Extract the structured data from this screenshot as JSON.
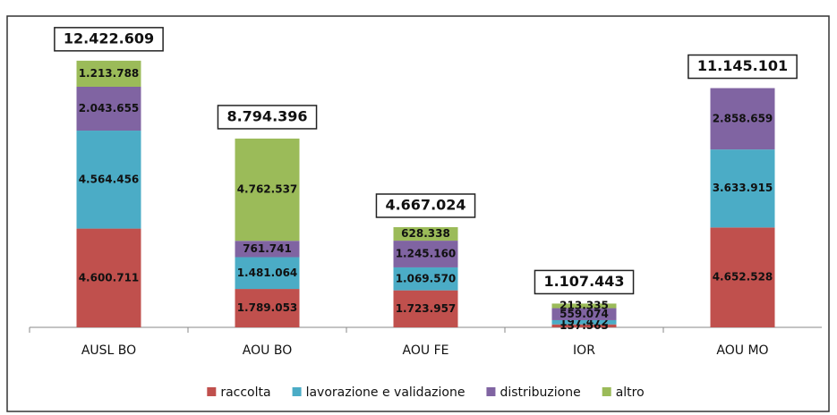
{
  "chart_data": {
    "type": "stacked-bar",
    "categories": [
      "AUSL BO",
      "AOU BO",
      "AOU FE",
      "IOR",
      "AOU MO"
    ],
    "series": [
      {
        "name": "raccolta",
        "color": "#c0504d",
        "values": [
          4600711,
          1789053,
          1723957,
          137563,
          4652528
        ],
        "value_labels": [
          "4.600.711",
          "1.789.053",
          "1.723.957",
          "137.563",
          "4.652.528"
        ]
      },
      {
        "name": "lavorazione e validazione",
        "color": "#4bacc6",
        "values": [
          4564456,
          1481064,
          1069570,
          197472,
          3633915
        ],
        "value_labels": [
          "4.564.456",
          "1.481.064",
          "1.069.570",
          "197.472",
          "3.633.915"
        ]
      },
      {
        "name": "distribuzione",
        "color": "#8064a2",
        "values": [
          2043655,
          761741,
          1245160,
          559074,
          2858659
        ],
        "value_labels": [
          "2.043.655",
          "761.741",
          "1.245.160",
          "559.074",
          "2.858.659"
        ]
      },
      {
        "name": "altro",
        "color": "#9bbb59",
        "values": [
          1213788,
          4762537,
          628338,
          213335,
          null
        ],
        "value_labels": [
          "1.213.788",
          "4.762.537",
          "628.338",
          "213.335",
          null
        ]
      }
    ],
    "totals": [
      12422609,
      8794396,
      4667024,
      1107443,
      11145101
    ],
    "total_labels": [
      "12.422.609",
      "8.794.396",
      "4.667.024",
      "1.107.443",
      "11.145.101"
    ],
    "ylim": [
      0,
      14000000
    ],
    "legend": "bottom"
  }
}
